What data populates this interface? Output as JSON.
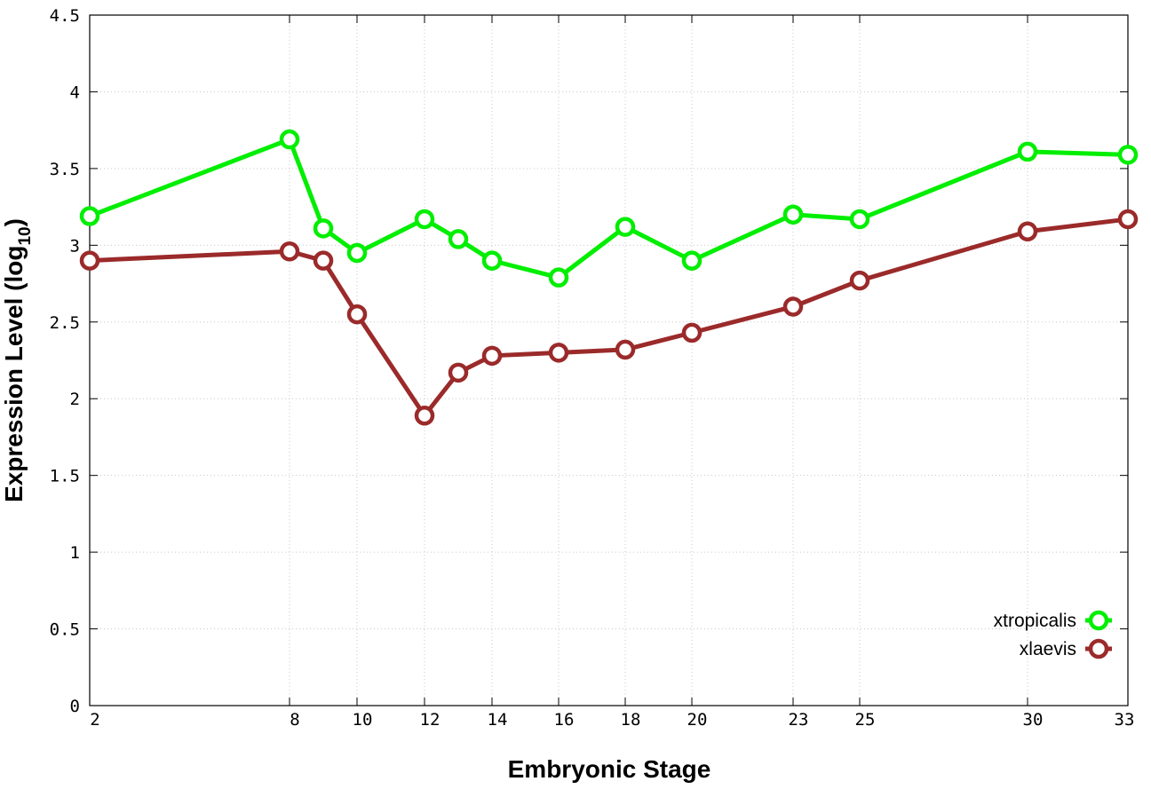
{
  "chart_data": {
    "type": "line",
    "xlabel": "Embryonic Stage",
    "ylabel": "Expression Level (log",
    "ylabel_sub": "10",
    "ylabel_close": ")",
    "xlim": [
      2,
      33
    ],
    "ylim": [
      0,
      4.5
    ],
    "x_ticks": [
      2,
      8,
      10,
      12,
      14,
      16,
      18,
      20,
      23,
      25,
      30,
      33
    ],
    "x_tick_labels": [
      "2",
      "8",
      "10",
      "12",
      "14",
      "16",
      "18",
      "20",
      "23",
      "25",
      "30",
      "33"
    ],
    "y_ticks": [
      0,
      0.5,
      1,
      1.5,
      2,
      2.5,
      3,
      3.5,
      4,
      4.5
    ],
    "y_tick_labels": [
      "0",
      "0.5",
      "1",
      "1.5",
      "2",
      "2.5",
      "3",
      "3.5",
      "4",
      "4.5"
    ],
    "x_stops": [
      2,
      8,
      9,
      10,
      12,
      13,
      14,
      16,
      18,
      20,
      23,
      25,
      30,
      33
    ],
    "grid": true,
    "legend_position": "bottom-right",
    "series": [
      {
        "name": "xtropicalis",
        "color": "#00ee00",
        "marker": "open-circle",
        "x": [
          2,
          8,
          9,
          10,
          12,
          13,
          14,
          16,
          18,
          20,
          23,
          25,
          30,
          33
        ],
        "values": [
          3.19,
          3.69,
          3.11,
          2.95,
          3.17,
          3.04,
          2.9,
          2.79,
          3.12,
          2.9,
          3.2,
          3.17,
          3.61,
          3.59
        ]
      },
      {
        "name": "xlaevis",
        "color": "#9b2a2a",
        "marker": "open-circle",
        "x": [
          2,
          8,
          9,
          10,
          12,
          13,
          14,
          16,
          18,
          20,
          23,
          25,
          30,
          33
        ],
        "values": [
          2.9,
          2.96,
          2.9,
          2.55,
          1.89,
          2.17,
          2.28,
          2.3,
          2.32,
          2.43,
          2.6,
          2.77,
          3.09,
          3.17
        ]
      }
    ]
  }
}
